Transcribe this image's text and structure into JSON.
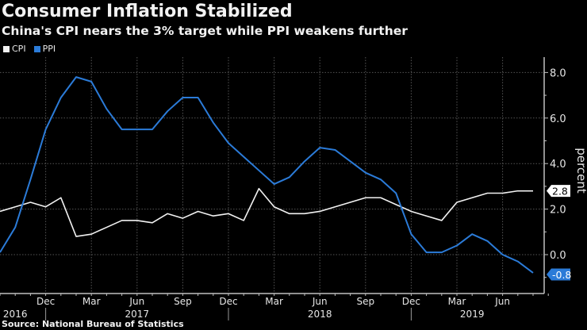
{
  "header": {
    "title": "Consumer Inflation Stabilized",
    "subtitle": "China's CPI nears the 3% target while PPI weakens further"
  },
  "footer": {
    "source": "Source: National Bureau of Statistics"
  },
  "colors": {
    "background": "#000000",
    "cpi": "#f2f2f2",
    "ppi": "#2b7bd8",
    "grid": "#555555",
    "axis": "#bfbfbf"
  },
  "chart_data": {
    "type": "line",
    "title": "Consumer Inflation Stabilized",
    "subtitle": "China's CPI nears the 3% target while PPI weakens further",
    "xlabel": "",
    "ylabel": "percent",
    "ylim": [
      -1.7,
      8.6
    ],
    "yticks": [
      0.0,
      2.0,
      4.0,
      6.0,
      8.0
    ],
    "ytick_labels": [
      "0.0",
      "2.0",
      "4.0",
      "6.0",
      "8.0"
    ],
    "grid": true,
    "legend": {
      "placement": "top-left",
      "entries": [
        "CPI",
        "PPI"
      ]
    },
    "x": [
      "2016-09",
      "2016-10",
      "2016-11",
      "2016-12",
      "2017-01",
      "2017-02",
      "2017-03",
      "2017-04",
      "2017-05",
      "2017-06",
      "2017-07",
      "2017-08",
      "2017-09",
      "2017-10",
      "2017-11",
      "2017-12",
      "2018-01",
      "2018-02",
      "2018-03",
      "2018-04",
      "2018-05",
      "2018-06",
      "2018-07",
      "2018-08",
      "2018-09",
      "2018-10",
      "2018-11",
      "2018-12",
      "2019-01",
      "2019-02",
      "2019-03",
      "2019-04",
      "2019-05",
      "2019-06",
      "2019-07",
      "2019-08"
    ],
    "month_ticks": [
      {
        "month": "2016-12",
        "label": "Dec"
      },
      {
        "month": "2017-03",
        "label": "Mar"
      },
      {
        "month": "2017-06",
        "label": "Jun"
      },
      {
        "month": "2017-09",
        "label": "Sep"
      },
      {
        "month": "2017-12",
        "label": "Dec"
      },
      {
        "month": "2018-03",
        "label": "Mar"
      },
      {
        "month": "2018-06",
        "label": "Jun"
      },
      {
        "month": "2018-09",
        "label": "Sep"
      },
      {
        "month": "2018-12",
        "label": "Dec"
      },
      {
        "month": "2019-03",
        "label": "Mar"
      },
      {
        "month": "2019-06",
        "label": "Jun"
      }
    ],
    "year_labels": [
      {
        "label": "2016",
        "center_month": "2016-10"
      },
      {
        "label": "2017",
        "center_month": "2017-06"
      },
      {
        "label": "2018",
        "center_month": "2018-06"
      },
      {
        "label": "2019",
        "center_month": "2019-04"
      }
    ],
    "year_dividers": [
      "2016-12",
      "2017-12",
      "2018-12"
    ],
    "series": [
      {
        "name": "CPI",
        "color": "#f2f2f2",
        "values": [
          1.9,
          2.1,
          2.3,
          2.1,
          2.5,
          0.8,
          0.9,
          1.2,
          1.5,
          1.5,
          1.4,
          1.8,
          1.6,
          1.9,
          1.7,
          1.8,
          1.5,
          2.9,
          2.1,
          1.8,
          1.8,
          1.9,
          2.1,
          2.3,
          2.5,
          2.5,
          2.2,
          1.9,
          1.7,
          1.5,
          2.3,
          2.5,
          2.7,
          2.7,
          2.8,
          2.8
        ],
        "last_label": "2.8"
      },
      {
        "name": "PPI",
        "color": "#2b7bd8",
        "values": [
          0.1,
          1.2,
          3.3,
          5.5,
          6.9,
          7.8,
          7.6,
          6.4,
          5.5,
          5.5,
          5.5,
          6.3,
          6.9,
          6.9,
          5.8,
          4.9,
          4.3,
          3.7,
          3.1,
          3.4,
          4.1,
          4.7,
          4.6,
          4.1,
          3.6,
          3.3,
          2.7,
          0.9,
          0.1,
          0.1,
          0.4,
          0.9,
          0.6,
          0.0,
          -0.3,
          -0.8
        ],
        "last_label": "-0.8"
      }
    ]
  }
}
